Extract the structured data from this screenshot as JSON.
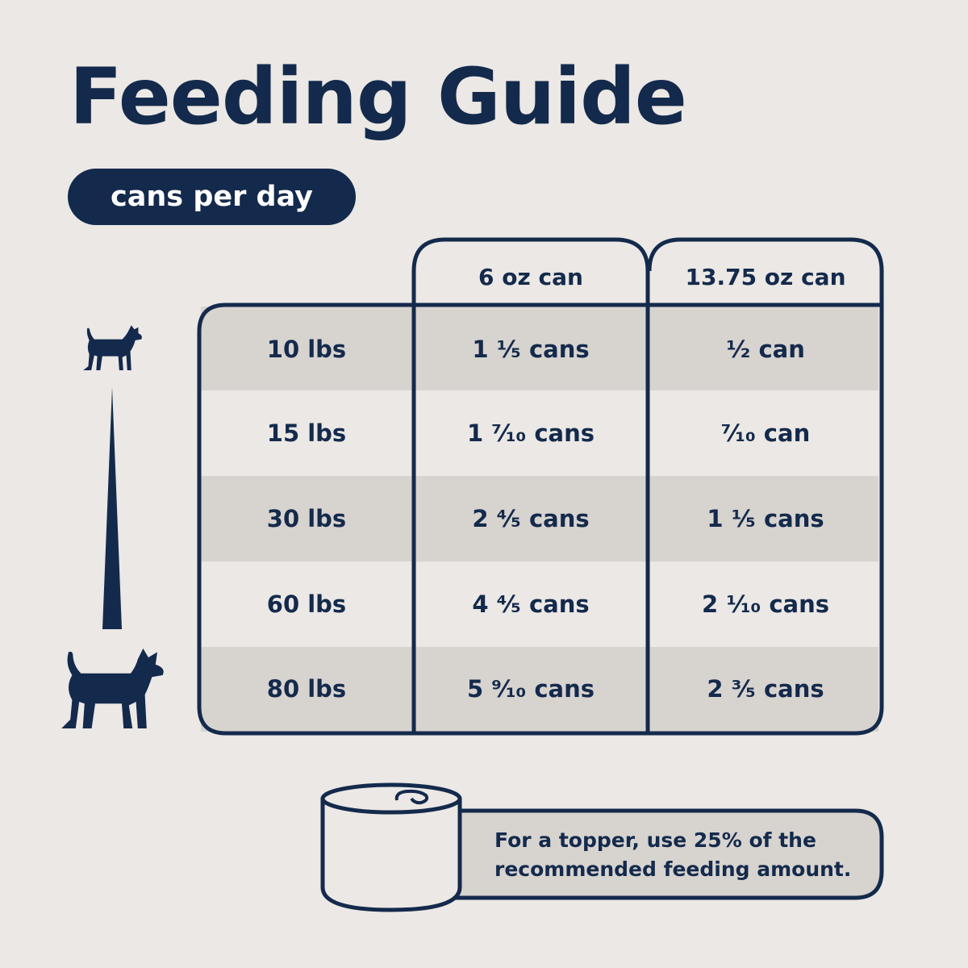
{
  "title": "Feeding Guide",
  "subtitle_pill": "cans per day",
  "table": {
    "columns": [
      "6 oz can",
      "13.75 oz can"
    ],
    "rows": [
      {
        "weight": "10 lbs",
        "can_6oz": "1 ¹⁄₅ cans",
        "can_1375oz": "¹⁄₂ can"
      },
      {
        "weight": "15 lbs",
        "can_6oz": "1 ⁷⁄₁₀ cans",
        "can_1375oz": "⁷⁄₁₀ can"
      },
      {
        "weight": "30 lbs",
        "can_6oz": "2 ⁴⁄₅ cans",
        "can_1375oz": "1 ¹⁄₅ cans"
      },
      {
        "weight": "60 lbs",
        "can_6oz": "4 ⁴⁄₅ cans",
        "can_1375oz": "2 ¹⁄₁₀ cans"
      },
      {
        "weight": "80 lbs",
        "can_6oz": "5 ⁹⁄₁₀ cans",
        "can_1375oz": "2 ³⁄₅ cans"
      }
    ]
  },
  "topper_note": "For a topper, use 25% of the recommended feeding amount.",
  "icons": {
    "small_dog": "small-dog-icon",
    "large_dog": "large-dog-icon",
    "size_scale": "size-scale-icon",
    "can": "can-icon"
  },
  "colors": {
    "navy": "#142a4c",
    "background": "#ebe8e5",
    "row_shaded": "#d7d3cf",
    "row_light": "#ebe8e5"
  }
}
